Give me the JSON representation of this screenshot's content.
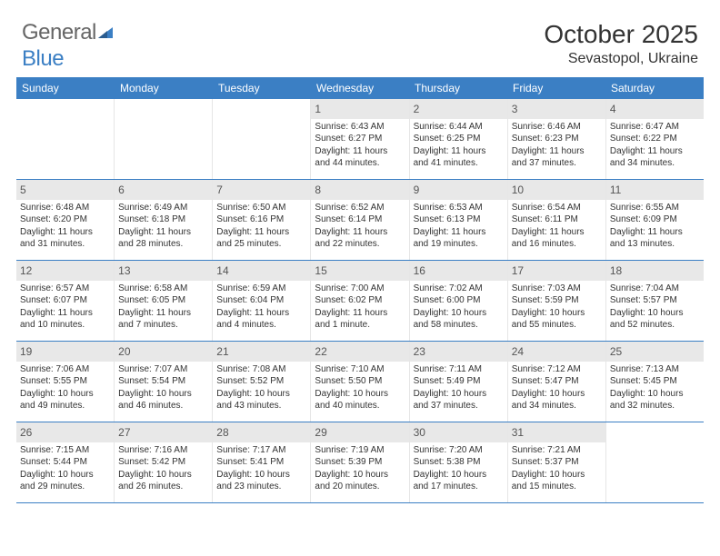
{
  "logo": {
    "text_general": "General",
    "text_blue": "Blue"
  },
  "title": "October 2025",
  "location": "Sevastopol, Ukraine",
  "colors": {
    "header_bg": "#3b7fc4",
    "header_text": "#ffffff",
    "daynum_bg": "#e8e8e8",
    "border": "#3b7fc4",
    "cell_border": "#e6e6e6",
    "text": "#333333"
  },
  "daynames": [
    "Sunday",
    "Monday",
    "Tuesday",
    "Wednesday",
    "Thursday",
    "Friday",
    "Saturday"
  ],
  "weeks": [
    [
      {
        "empty": true
      },
      {
        "empty": true
      },
      {
        "empty": true
      },
      {
        "day": "1",
        "sunrise": "Sunrise: 6:43 AM",
        "sunset": "Sunset: 6:27 PM",
        "daylight1": "Daylight: 11 hours",
        "daylight2": "and 44 minutes."
      },
      {
        "day": "2",
        "sunrise": "Sunrise: 6:44 AM",
        "sunset": "Sunset: 6:25 PM",
        "daylight1": "Daylight: 11 hours",
        "daylight2": "and 41 minutes."
      },
      {
        "day": "3",
        "sunrise": "Sunrise: 6:46 AM",
        "sunset": "Sunset: 6:23 PM",
        "daylight1": "Daylight: 11 hours",
        "daylight2": "and 37 minutes."
      },
      {
        "day": "4",
        "sunrise": "Sunrise: 6:47 AM",
        "sunset": "Sunset: 6:22 PM",
        "daylight1": "Daylight: 11 hours",
        "daylight2": "and 34 minutes."
      }
    ],
    [
      {
        "day": "5",
        "sunrise": "Sunrise: 6:48 AM",
        "sunset": "Sunset: 6:20 PM",
        "daylight1": "Daylight: 11 hours",
        "daylight2": "and 31 minutes."
      },
      {
        "day": "6",
        "sunrise": "Sunrise: 6:49 AM",
        "sunset": "Sunset: 6:18 PM",
        "daylight1": "Daylight: 11 hours",
        "daylight2": "and 28 minutes."
      },
      {
        "day": "7",
        "sunrise": "Sunrise: 6:50 AM",
        "sunset": "Sunset: 6:16 PM",
        "daylight1": "Daylight: 11 hours",
        "daylight2": "and 25 minutes."
      },
      {
        "day": "8",
        "sunrise": "Sunrise: 6:52 AM",
        "sunset": "Sunset: 6:14 PM",
        "daylight1": "Daylight: 11 hours",
        "daylight2": "and 22 minutes."
      },
      {
        "day": "9",
        "sunrise": "Sunrise: 6:53 AM",
        "sunset": "Sunset: 6:13 PM",
        "daylight1": "Daylight: 11 hours",
        "daylight2": "and 19 minutes."
      },
      {
        "day": "10",
        "sunrise": "Sunrise: 6:54 AM",
        "sunset": "Sunset: 6:11 PM",
        "daylight1": "Daylight: 11 hours",
        "daylight2": "and 16 minutes."
      },
      {
        "day": "11",
        "sunrise": "Sunrise: 6:55 AM",
        "sunset": "Sunset: 6:09 PM",
        "daylight1": "Daylight: 11 hours",
        "daylight2": "and 13 minutes."
      }
    ],
    [
      {
        "day": "12",
        "sunrise": "Sunrise: 6:57 AM",
        "sunset": "Sunset: 6:07 PM",
        "daylight1": "Daylight: 11 hours",
        "daylight2": "and 10 minutes."
      },
      {
        "day": "13",
        "sunrise": "Sunrise: 6:58 AM",
        "sunset": "Sunset: 6:05 PM",
        "daylight1": "Daylight: 11 hours",
        "daylight2": "and 7 minutes."
      },
      {
        "day": "14",
        "sunrise": "Sunrise: 6:59 AM",
        "sunset": "Sunset: 6:04 PM",
        "daylight1": "Daylight: 11 hours",
        "daylight2": "and 4 minutes."
      },
      {
        "day": "15",
        "sunrise": "Sunrise: 7:00 AM",
        "sunset": "Sunset: 6:02 PM",
        "daylight1": "Daylight: 11 hours",
        "daylight2": "and 1 minute."
      },
      {
        "day": "16",
        "sunrise": "Sunrise: 7:02 AM",
        "sunset": "Sunset: 6:00 PM",
        "daylight1": "Daylight: 10 hours",
        "daylight2": "and 58 minutes."
      },
      {
        "day": "17",
        "sunrise": "Sunrise: 7:03 AM",
        "sunset": "Sunset: 5:59 PM",
        "daylight1": "Daylight: 10 hours",
        "daylight2": "and 55 minutes."
      },
      {
        "day": "18",
        "sunrise": "Sunrise: 7:04 AM",
        "sunset": "Sunset: 5:57 PM",
        "daylight1": "Daylight: 10 hours",
        "daylight2": "and 52 minutes."
      }
    ],
    [
      {
        "day": "19",
        "sunrise": "Sunrise: 7:06 AM",
        "sunset": "Sunset: 5:55 PM",
        "daylight1": "Daylight: 10 hours",
        "daylight2": "and 49 minutes."
      },
      {
        "day": "20",
        "sunrise": "Sunrise: 7:07 AM",
        "sunset": "Sunset: 5:54 PM",
        "daylight1": "Daylight: 10 hours",
        "daylight2": "and 46 minutes."
      },
      {
        "day": "21",
        "sunrise": "Sunrise: 7:08 AM",
        "sunset": "Sunset: 5:52 PM",
        "daylight1": "Daylight: 10 hours",
        "daylight2": "and 43 minutes."
      },
      {
        "day": "22",
        "sunrise": "Sunrise: 7:10 AM",
        "sunset": "Sunset: 5:50 PM",
        "daylight1": "Daylight: 10 hours",
        "daylight2": "and 40 minutes."
      },
      {
        "day": "23",
        "sunrise": "Sunrise: 7:11 AM",
        "sunset": "Sunset: 5:49 PM",
        "daylight1": "Daylight: 10 hours",
        "daylight2": "and 37 minutes."
      },
      {
        "day": "24",
        "sunrise": "Sunrise: 7:12 AM",
        "sunset": "Sunset: 5:47 PM",
        "daylight1": "Daylight: 10 hours",
        "daylight2": "and 34 minutes."
      },
      {
        "day": "25",
        "sunrise": "Sunrise: 7:13 AM",
        "sunset": "Sunset: 5:45 PM",
        "daylight1": "Daylight: 10 hours",
        "daylight2": "and 32 minutes."
      }
    ],
    [
      {
        "day": "26",
        "sunrise": "Sunrise: 7:15 AM",
        "sunset": "Sunset: 5:44 PM",
        "daylight1": "Daylight: 10 hours",
        "daylight2": "and 29 minutes."
      },
      {
        "day": "27",
        "sunrise": "Sunrise: 7:16 AM",
        "sunset": "Sunset: 5:42 PM",
        "daylight1": "Daylight: 10 hours",
        "daylight2": "and 26 minutes."
      },
      {
        "day": "28",
        "sunrise": "Sunrise: 7:17 AM",
        "sunset": "Sunset: 5:41 PM",
        "daylight1": "Daylight: 10 hours",
        "daylight2": "and 23 minutes."
      },
      {
        "day": "29",
        "sunrise": "Sunrise: 7:19 AM",
        "sunset": "Sunset: 5:39 PM",
        "daylight1": "Daylight: 10 hours",
        "daylight2": "and 20 minutes."
      },
      {
        "day": "30",
        "sunrise": "Sunrise: 7:20 AM",
        "sunset": "Sunset: 5:38 PM",
        "daylight1": "Daylight: 10 hours",
        "daylight2": "and 17 minutes."
      },
      {
        "day": "31",
        "sunrise": "Sunrise: 7:21 AM",
        "sunset": "Sunset: 5:37 PM",
        "daylight1": "Daylight: 10 hours",
        "daylight2": "and 15 minutes."
      },
      {
        "empty": true
      }
    ]
  ]
}
